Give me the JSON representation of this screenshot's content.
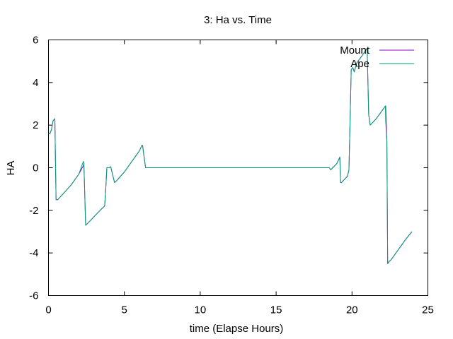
{
  "chart_data": {
    "type": "line",
    "title": "3: Ha vs. Time",
    "xlabel": "time (Elapse Hours)",
    "ylabel": "HA",
    "xlim": [
      0,
      25
    ],
    "ylim": [
      -6,
      6
    ],
    "xticks": [
      0,
      5,
      10,
      15,
      20,
      25
    ],
    "yticks": [
      -6,
      -4,
      -2,
      0,
      2,
      4,
      6
    ],
    "legend_position": "top-right",
    "series": [
      {
        "name": "Mount",
        "color": "#9400d3",
        "x": [
          0,
          0.1,
          0.2,
          0.3,
          0.42,
          0.5,
          0.6,
          1.0,
          1.5,
          2.0,
          2.3,
          2.33,
          2.45,
          2.6,
          3.0,
          3.4,
          3.7,
          3.75,
          3.85,
          4.0,
          4.1,
          4.15,
          4.35,
          4.5,
          5.0,
          5.5,
          6.0,
          6.15,
          6.2,
          6.3,
          6.4,
          10.0,
          15.0,
          18.5,
          18.6,
          19.0,
          19.2,
          19.25,
          19.3,
          19.7,
          19.8,
          19.95,
          20.05,
          20.15,
          20.3,
          20.5,
          20.8,
          21.0,
          21.1,
          21.2,
          21.6,
          22.0,
          22.2,
          22.22,
          22.3,
          22.35,
          22.45,
          22.6,
          23.0,
          23.5,
          23.95
        ],
        "y": [
          1.6,
          1.6,
          1.8,
          2.2,
          2.3,
          -1.5,
          -1.5,
          -1.2,
          -0.8,
          -0.3,
          0.1,
          0.2,
          -2.7,
          -2.6,
          -2.3,
          -2.0,
          -1.8,
          -1.3,
          0.0,
          0.0,
          0.05,
          -0.1,
          -0.7,
          -0.6,
          -0.2,
          0.3,
          0.8,
          1.05,
          1.05,
          0.5,
          0.0,
          0.0,
          0.0,
          0.0,
          -0.1,
          0.2,
          0.5,
          -0.7,
          -0.7,
          -0.4,
          -0.1,
          4.6,
          4.7,
          4.5,
          4.9,
          5.1,
          5.4,
          5.6,
          2.5,
          2.0,
          2.3,
          2.7,
          2.9,
          2.9,
          1.2,
          -4.5,
          -4.4,
          -4.3,
          -3.9,
          -3.4,
          -3.0
        ]
      },
      {
        "name": "Ape",
        "color": "#009e73",
        "x": [
          0,
          0.1,
          0.2,
          0.3,
          0.42,
          0.5,
          0.6,
          1.0,
          1.5,
          2.0,
          2.3,
          2.33,
          2.45,
          2.6,
          3.0,
          3.4,
          3.7,
          3.75,
          3.85,
          4.0,
          4.1,
          4.15,
          4.35,
          4.5,
          5.0,
          5.5,
          6.0,
          6.15,
          6.2,
          6.3,
          6.4,
          10.0,
          15.0,
          18.5,
          18.6,
          19.0,
          19.2,
          19.25,
          19.3,
          19.7,
          19.8,
          19.95,
          20.05,
          20.15,
          20.3,
          20.5,
          20.8,
          21.0,
          21.1,
          21.2,
          21.6,
          22.0,
          22.2,
          22.22,
          22.3,
          22.35,
          22.45,
          22.6,
          23.0,
          23.5,
          23.95
        ],
        "y": [
          1.6,
          1.6,
          1.8,
          2.2,
          2.3,
          -1.5,
          -1.5,
          -1.2,
          -0.8,
          -0.3,
          0.3,
          0.2,
          -2.7,
          -2.6,
          -2.3,
          -2.0,
          -1.8,
          -1.3,
          0.0,
          0.0,
          0.05,
          -0.1,
          -0.7,
          -0.6,
          -0.2,
          0.3,
          0.8,
          1.05,
          1.05,
          0.5,
          0.0,
          0.0,
          0.0,
          0.0,
          -0.1,
          0.2,
          0.5,
          -0.7,
          -0.7,
          -0.4,
          -0.1,
          4.6,
          4.7,
          4.5,
          4.9,
          5.1,
          5.4,
          5.6,
          2.5,
          2.0,
          2.3,
          2.7,
          2.9,
          2.2,
          1.2,
          -4.5,
          -4.4,
          -4.3,
          -3.9,
          -3.4,
          -3.0
        ]
      }
    ]
  }
}
